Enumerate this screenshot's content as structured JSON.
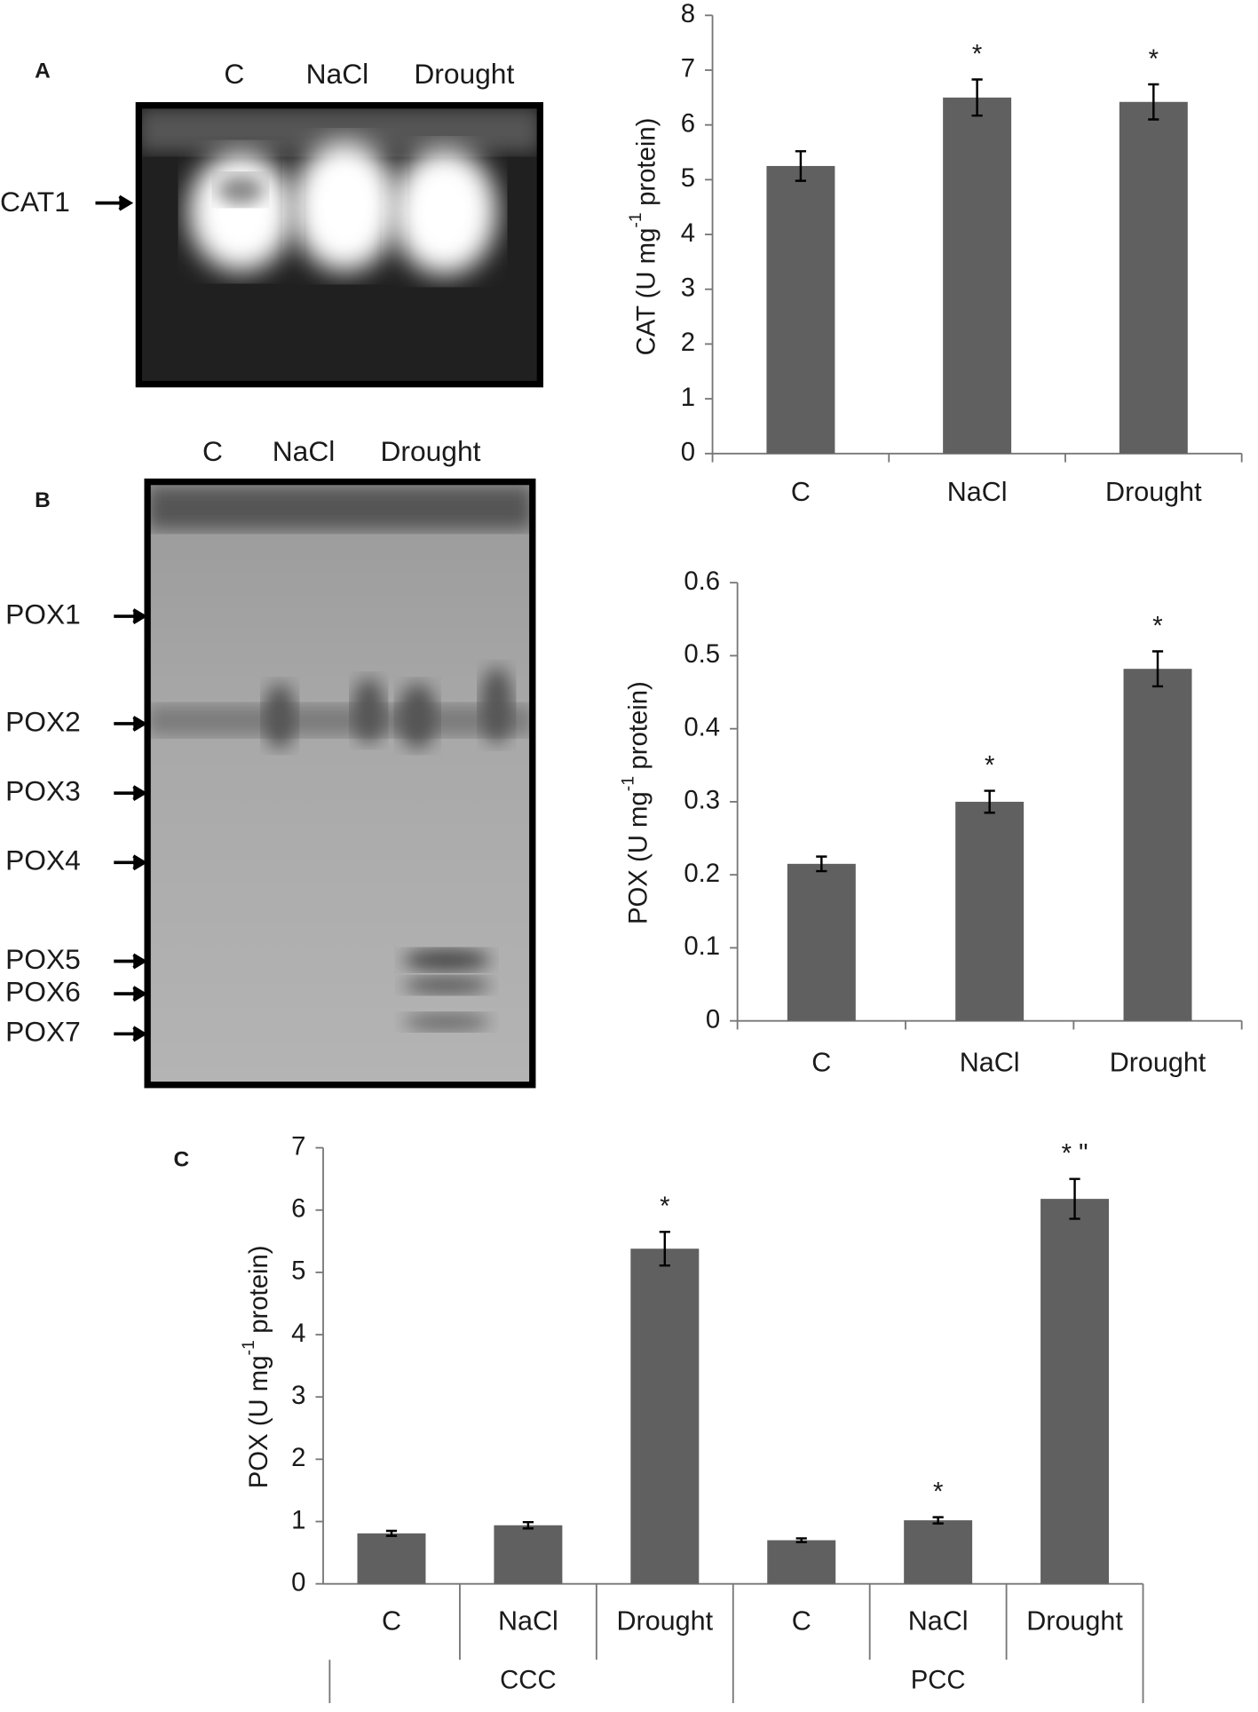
{
  "panels": {
    "a": "A",
    "b": "B",
    "c": "C"
  },
  "gels": [
    {
      "lanes": [
        "C",
        "NaCl",
        "Drought"
      ],
      "bands": [
        "CAT1"
      ]
    },
    {
      "lanes": [
        "C",
        "NaCl",
        "Drought"
      ],
      "bands": [
        "POX1",
        "POX2",
        "POX3",
        "POX4",
        "POX5",
        "POX6",
        "POX7"
      ]
    }
  ],
  "chart_data": [
    {
      "type": "bar",
      "ylabel": "CAT (U mg",
      "ylabel_sup": "-1",
      "ylabel_end": "protein)",
      "categories": [
        "C",
        "NaCl",
        "Drought"
      ],
      "values": [
        5.25,
        6.5,
        6.42
      ],
      "errors": [
        0.27,
        0.33,
        0.32
      ],
      "annotations": [
        null,
        "*",
        "*"
      ],
      "color": "#5f605f",
      "ylim": [
        0,
        8
      ],
      "yticks": [
        0,
        1,
        2,
        3,
        4,
        5,
        6,
        7,
        8
      ]
    },
    {
      "type": "bar",
      "ylabel": "POX (U mg",
      "ylabel_sup": "-1",
      "ylabel_end": "protein)",
      "categories": [
        "C",
        "NaCl",
        "Drought"
      ],
      "values": [
        0.215,
        0.3,
        0.482
      ],
      "errors": [
        0.01,
        0.015,
        0.024
      ],
      "annotations": [
        null,
        "*",
        "*"
      ],
      "color": "#5f605f",
      "ylim": [
        0,
        0.6
      ],
      "yticks": [
        0,
        0.1,
        0.2,
        0.3,
        0.4,
        0.5,
        0.6
      ]
    },
    {
      "type": "bar",
      "ylabel": "POX (U mg",
      "ylabel_sup": "-1",
      "ylabel_end": "protein)",
      "categories": [
        "C",
        "NaCl",
        "Drought",
        "C",
        "NaCl",
        "Drought"
      ],
      "groups": [
        "CCC",
        "PCC"
      ],
      "values": [
        0.81,
        0.94,
        5.38,
        0.7,
        1.02,
        6.18
      ],
      "errors": [
        0.04,
        0.05,
        0.27,
        0.03,
        0.05,
        0.32
      ],
      "annotations": [
        null,
        null,
        "*",
        null,
        "*",
        "* \""
      ],
      "color": "#5f605f",
      "ylim": [
        0,
        7
      ],
      "yticks": [
        0,
        1,
        2,
        3,
        4,
        5,
        6,
        7
      ]
    }
  ]
}
